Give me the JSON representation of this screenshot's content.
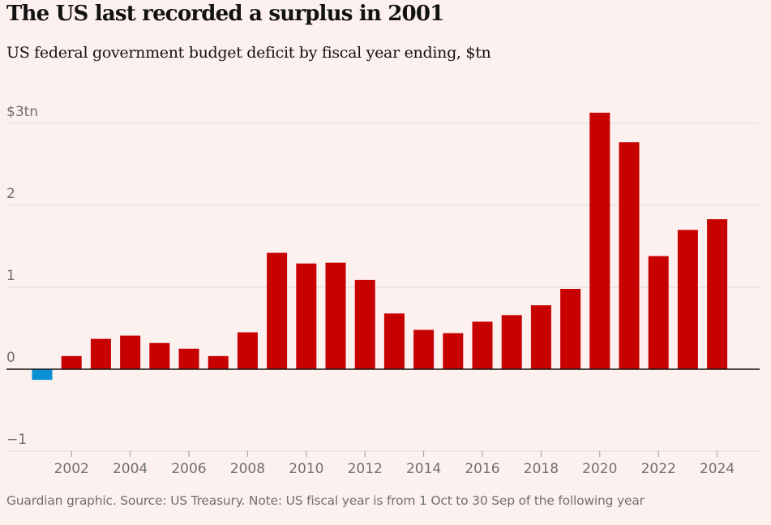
{
  "header": {
    "title": "The US last recorded a surplus in 2001",
    "subtitle": "US federal government budget deficit by fiscal year ending, $tn"
  },
  "footer": {
    "source": "Guardian graphic. Source: US Treasury. Note: US fiscal year is from 1 Oct to 30 Sep of the following year"
  },
  "colors": {
    "deficit": "#c70000",
    "surplus": "#0a90d4",
    "background": "#fdf1ef",
    "gridline": "#dcdcdc",
    "zero_line": "#121212"
  },
  "chart_data": {
    "type": "bar",
    "title": "The US last recorded a surplus in 2001",
    "subtitle": "US federal government budget deficit by fiscal year ending, $tn",
    "x": [
      2001,
      2002,
      2003,
      2004,
      2005,
      2006,
      2007,
      2008,
      2009,
      2010,
      2011,
      2012,
      2013,
      2014,
      2015,
      2016,
      2017,
      2018,
      2019,
      2020,
      2021,
      2022,
      2023,
      2024
    ],
    "values": [
      -0.13,
      0.16,
      0.37,
      0.41,
      0.32,
      0.25,
      0.16,
      0.45,
      1.42,
      1.29,
      1.3,
      1.09,
      0.68,
      0.48,
      0.44,
      0.58,
      0.66,
      0.78,
      0.98,
      3.13,
      2.77,
      1.38,
      1.7,
      1.83
    ],
    "x_tick_labels": [
      "2002",
      "2004",
      "2006",
      "2008",
      "2010",
      "2012",
      "2014",
      "2016",
      "2018",
      "2020",
      "2022",
      "2024"
    ],
    "y_ticks": [
      -1,
      0,
      1,
      2,
      3
    ],
    "y_tick_labels": [
      "−1",
      "0",
      "1",
      "2",
      "$3tn"
    ],
    "ylim": [
      -1,
      3
    ],
    "grid": true,
    "legend": "none",
    "xlabel": "",
    "ylabel": ""
  }
}
